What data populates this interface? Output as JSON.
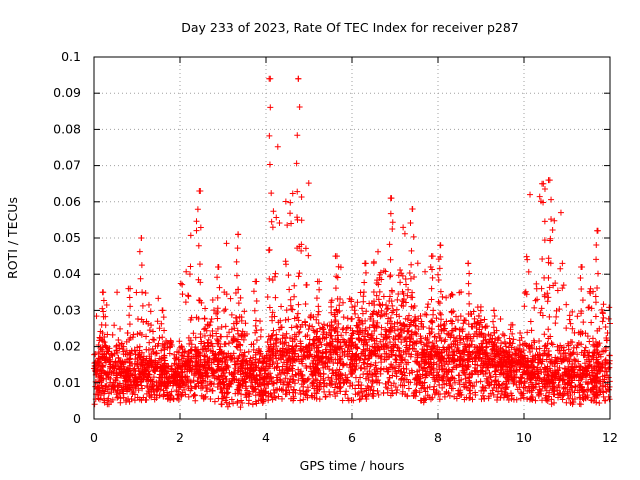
{
  "chart_data": {
    "type": "scatter",
    "title": "Day 233 of 2023, Rate Of TEC Index for receiver p287",
    "xlabel": "GPS time / hours",
    "ylabel": "ROTI / TECUs",
    "xlim": [
      0,
      12
    ],
    "ylim": [
      0,
      0.1
    ],
    "xticks": [
      "0",
      "2",
      "4",
      "6",
      "8",
      "10",
      "12"
    ],
    "yticks": [
      "0",
      "0.01",
      "0.02",
      "0.03",
      "0.04",
      "0.05",
      "0.06",
      "0.07",
      "0.08",
      "0.09",
      "0.1"
    ],
    "grid": true,
    "marker": "plus",
    "color": "#ff0000",
    "bands": [
      {
        "x": [
          0.0,
          0.5
        ],
        "y_mean": 0.0125,
        "y_low": 0.004,
        "y_high": 0.035,
        "peak_x": 0.2,
        "peak_y": 0.035
      },
      {
        "x": [
          0.5,
          1.0
        ],
        "y_mean": 0.0115,
        "y_low": 0.004,
        "y_high": 0.036,
        "peak_x": 0.8,
        "peak_y": 0.036
      },
      {
        "x": [
          1.0,
          1.5
        ],
        "y_mean": 0.0125,
        "y_low": 0.005,
        "y_high": 0.05,
        "peak_x": 1.1,
        "peak_y": 0.05
      },
      {
        "x": [
          1.5,
          2.0
        ],
        "y_mean": 0.0115,
        "y_low": 0.005,
        "y_high": 0.03,
        "peak_x": 1.6,
        "peak_y": 0.03
      },
      {
        "x": [
          2.0,
          2.5
        ],
        "y_mean": 0.0125,
        "y_low": 0.005,
        "y_high": 0.063,
        "peak_x": 2.45,
        "peak_y": 0.063
      },
      {
        "x": [
          2.5,
          3.0
        ],
        "y_mean": 0.0135,
        "y_low": 0.004,
        "y_high": 0.042,
        "peak_x": 2.9,
        "peak_y": 0.042
      },
      {
        "x": [
          3.0,
          3.5
        ],
        "y_mean": 0.013,
        "y_low": 0.003,
        "y_high": 0.051,
        "peak_x": 3.35,
        "peak_y": 0.051
      },
      {
        "x": [
          3.5,
          4.0
        ],
        "y_mean": 0.011,
        "y_low": 0.004,
        "y_high": 0.038,
        "peak_x": 3.75,
        "peak_y": 0.038
      },
      {
        "x": [
          4.0,
          4.5
        ],
        "y_mean": 0.015,
        "y_low": 0.005,
        "y_high": 0.094,
        "peak_x": 4.1,
        "peak_y": 0.094
      },
      {
        "x": [
          4.5,
          5.0
        ],
        "y_mean": 0.016,
        "y_low": 0.005,
        "y_high": 0.094,
        "peak_x": 4.75,
        "peak_y": 0.094
      },
      {
        "x": [
          5.0,
          5.5
        ],
        "y_mean": 0.015,
        "y_low": 0.005,
        "y_high": 0.038,
        "peak_x": 5.2,
        "peak_y": 0.038
      },
      {
        "x": [
          5.5,
          6.0
        ],
        "y_mean": 0.0155,
        "y_low": 0.005,
        "y_high": 0.045,
        "peak_x": 5.65,
        "peak_y": 0.045
      },
      {
        "x": [
          6.0,
          6.5
        ],
        "y_mean": 0.0165,
        "y_low": 0.005,
        "y_high": 0.043,
        "peak_x": 6.3,
        "peak_y": 0.043
      },
      {
        "x": [
          6.5,
          7.0
        ],
        "y_mean": 0.0185,
        "y_low": 0.006,
        "y_high": 0.061,
        "peak_x": 6.9,
        "peak_y": 0.061
      },
      {
        "x": [
          7.0,
          7.5
        ],
        "y_mean": 0.0195,
        "y_low": 0.006,
        "y_high": 0.058,
        "peak_x": 7.4,
        "peak_y": 0.058
      },
      {
        "x": [
          7.5,
          8.0
        ],
        "y_mean": 0.015,
        "y_low": 0.004,
        "y_high": 0.045,
        "peak_x": 7.85,
        "peak_y": 0.045
      },
      {
        "x": [
          8.0,
          8.5
        ],
        "y_mean": 0.016,
        "y_low": 0.005,
        "y_high": 0.048,
        "peak_x": 8.05,
        "peak_y": 0.048
      },
      {
        "x": [
          8.5,
          9.0
        ],
        "y_mean": 0.015,
        "y_low": 0.005,
        "y_high": 0.043,
        "peak_x": 8.7,
        "peak_y": 0.043
      },
      {
        "x": [
          9.0,
          9.5
        ],
        "y_mean": 0.0145,
        "y_low": 0.005,
        "y_high": 0.03,
        "peak_x": 9.3,
        "peak_y": 0.03
      },
      {
        "x": [
          9.5,
          10.0
        ],
        "y_mean": 0.0135,
        "y_low": 0.005,
        "y_high": 0.026,
        "peak_x": 9.7,
        "peak_y": 0.026
      },
      {
        "x": [
          10.0,
          10.5
        ],
        "y_mean": 0.013,
        "y_low": 0.005,
        "y_high": 0.065,
        "peak_x": 10.45,
        "peak_y": 0.065
      },
      {
        "x": [
          10.5,
          11.0
        ],
        "y_mean": 0.012,
        "y_low": 0.004,
        "y_high": 0.066,
        "peak_x": 10.6,
        "peak_y": 0.066
      },
      {
        "x": [
          11.0,
          11.5
        ],
        "y_mean": 0.0115,
        "y_low": 0.004,
        "y_high": 0.042,
        "peak_x": 11.35,
        "peak_y": 0.042
      },
      {
        "x": [
          11.5,
          12.0
        ],
        "y_mean": 0.0125,
        "y_low": 0.004,
        "y_high": 0.052,
        "peak_x": 11.7,
        "peak_y": 0.052
      }
    ]
  }
}
